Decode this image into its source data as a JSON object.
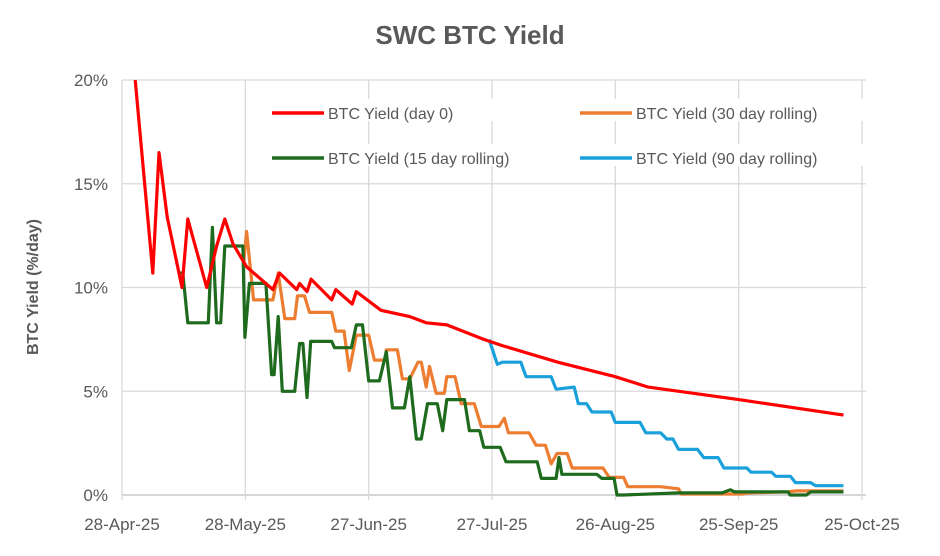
{
  "chart_data": {
    "type": "line",
    "title": "SWC BTC Yield",
    "xlabel": "",
    "ylabel": "BTC Yield (%/day)",
    "x_unit": "days since 28-Apr-25",
    "xlim": [
      0,
      180
    ],
    "ylim": [
      0,
      20
    ],
    "grid": true,
    "legend_position": "top-inside",
    "x_ticks": [
      {
        "day": 0,
        "label": "28-Apr-25"
      },
      {
        "day": 30,
        "label": "28-May-25"
      },
      {
        "day": 60,
        "label": "27-Jun-25"
      },
      {
        "day": 90,
        "label": "27-Jul-25"
      },
      {
        "day": 120,
        "label": "26-Aug-25"
      },
      {
        "day": 150,
        "label": "25-Sep-25"
      },
      {
        "day": 180,
        "label": "25-Oct-25"
      }
    ],
    "y_ticks": [
      {
        "value": 0,
        "label": "0%"
      },
      {
        "value": 5,
        "label": "5%"
      },
      {
        "value": 10,
        "label": "10%"
      },
      {
        "value": 15,
        "label": "15%"
      },
      {
        "value": 20,
        "label": "20%"
      }
    ],
    "series": [
      {
        "name": "BTC Yield (day 0)",
        "color": "#FF0000",
        "points": [
          [
            3.2,
            20
          ],
          [
            7.5,
            10.7
          ],
          [
            9,
            16.5
          ],
          [
            11,
            13.4
          ],
          [
            14.6,
            10.0
          ],
          [
            16,
            13.3
          ],
          [
            20.6,
            10.0
          ],
          [
            23,
            12.0
          ],
          [
            25,
            13.3
          ],
          [
            27,
            12.1
          ],
          [
            30.3,
            11.0
          ],
          [
            36.7,
            9.9
          ],
          [
            38.3,
            10.7
          ],
          [
            42.5,
            9.9
          ],
          [
            43.2,
            10.2
          ],
          [
            45,
            9.8
          ],
          [
            46,
            10.4
          ],
          [
            51,
            9.4
          ],
          [
            52,
            9.9
          ],
          [
            56,
            9.2
          ],
          [
            57,
            9.8
          ],
          [
            63,
            8.9
          ],
          [
            70,
            8.6
          ],
          [
            74,
            8.3
          ],
          [
            79,
            8.2
          ],
          [
            88,
            7.5
          ],
          [
            92.5,
            7.2
          ],
          [
            106,
            6.4
          ],
          [
            120,
            5.7
          ],
          [
            128,
            5.2
          ],
          [
            150,
            4.6
          ],
          [
            175.5,
            3.85
          ]
        ]
      },
      {
        "name": "BTC Yield (30 day rolling)",
        "color": "#ED7D31",
        "points": [
          [
            29.5,
            11.0
          ],
          [
            30.3,
            12.7
          ],
          [
            32,
            9.4
          ],
          [
            36.7,
            9.4
          ],
          [
            38,
            10.7
          ],
          [
            39.6,
            8.5
          ],
          [
            42,
            8.5
          ],
          [
            42.7,
            9.6
          ],
          [
            44.4,
            9.6
          ],
          [
            45.6,
            8.8
          ],
          [
            51,
            8.8
          ],
          [
            52,
            7.9
          ],
          [
            54,
            7.9
          ],
          [
            55.3,
            6.0
          ],
          [
            57,
            7.7
          ],
          [
            60,
            7.7
          ],
          [
            61.4,
            6.5
          ],
          [
            64,
            6.5
          ],
          [
            64.3,
            7.0
          ],
          [
            67,
            7.0
          ],
          [
            68.2,
            5.6
          ],
          [
            70,
            5.6
          ],
          [
            72,
            6.4
          ],
          [
            72.8,
            6.4
          ],
          [
            74,
            5.2
          ],
          [
            74.8,
            6.2
          ],
          [
            76.4,
            4.9
          ],
          [
            78.4,
            4.9
          ],
          [
            79,
            5.7
          ],
          [
            81,
            5.7
          ],
          [
            82.5,
            4.4
          ],
          [
            85.7,
            4.4
          ],
          [
            87.4,
            3.3
          ],
          [
            91.7,
            3.3
          ],
          [
            93,
            3.7
          ],
          [
            94,
            3.0
          ],
          [
            99,
            3.0
          ],
          [
            100.7,
            2.4
          ],
          [
            103,
            2.4
          ],
          [
            104.4,
            1.5
          ],
          [
            105.8,
            2.0
          ],
          [
            108.3,
            2.0
          ],
          [
            109.5,
            1.3
          ],
          [
            117,
            1.3
          ],
          [
            118.5,
            0.85
          ],
          [
            122,
            0.85
          ],
          [
            123,
            0.4
          ],
          [
            131,
            0.4
          ],
          [
            135.4,
            0.3
          ],
          [
            136,
            0.05
          ],
          [
            151,
            0.05
          ],
          [
            152,
            0.1
          ],
          [
            162,
            0.15
          ],
          [
            164,
            0.2
          ],
          [
            175.5,
            0.2
          ]
        ]
      },
      {
        "name": "BTC Yield (15 day rolling)",
        "color": "#1E6B1E",
        "points": [
          [
            13.6,
            10.7
          ],
          [
            14.8,
            10.7
          ],
          [
            16,
            8.3
          ],
          [
            21,
            8.3
          ],
          [
            22,
            12.9
          ],
          [
            23,
            8.3
          ],
          [
            24,
            8.3
          ],
          [
            25,
            12.0
          ],
          [
            29.4,
            12.0
          ],
          [
            29.9,
            7.6
          ],
          [
            31,
            10.2
          ],
          [
            35,
            10.2
          ],
          [
            36.4,
            5.8
          ],
          [
            37,
            5.8
          ],
          [
            38,
            8.6
          ],
          [
            39,
            5.0
          ],
          [
            42,
            5.0
          ],
          [
            43.2,
            7.3
          ],
          [
            44,
            7.3
          ],
          [
            45,
            4.7
          ],
          [
            45.9,
            7.4
          ],
          [
            51,
            7.4
          ],
          [
            51.7,
            7.1
          ],
          [
            55.8,
            7.1
          ],
          [
            57,
            8.2
          ],
          [
            58.5,
            8.2
          ],
          [
            60,
            5.5
          ],
          [
            62.6,
            5.5
          ],
          [
            64.3,
            6.9
          ],
          [
            65.8,
            4.2
          ],
          [
            68.7,
            4.2
          ],
          [
            70,
            5.7
          ],
          [
            71.6,
            2.7
          ],
          [
            72.8,
            2.7
          ],
          [
            74.3,
            4.4
          ],
          [
            76.7,
            4.4
          ],
          [
            78,
            3.1
          ],
          [
            79,
            4.6
          ],
          [
            83.3,
            4.6
          ],
          [
            84.5,
            3.1
          ],
          [
            87,
            3.1
          ],
          [
            88,
            2.3
          ],
          [
            92,
            2.3
          ],
          [
            93.4,
            1.6
          ],
          [
            101,
            1.6
          ],
          [
            102,
            0.8
          ],
          [
            105.6,
            0.8
          ],
          [
            106.3,
            1.8
          ],
          [
            107,
            1.0
          ],
          [
            115.5,
            1.0
          ],
          [
            116.7,
            0.8
          ],
          [
            119.7,
            0.8
          ],
          [
            120.4,
            0
          ],
          [
            122,
            0
          ],
          [
            135.4,
            0.1
          ],
          [
            146,
            0.1
          ],
          [
            148,
            0.25
          ],
          [
            149,
            0.15
          ],
          [
            162,
            0.15
          ],
          [
            162.5,
            0
          ],
          [
            166.5,
            0
          ],
          [
            167.5,
            0.15
          ],
          [
            175.5,
            0.15
          ]
        ]
      },
      {
        "name": "BTC Yield (90 day rolling)",
        "color": "#1AA0DB",
        "points": [
          [
            89.3,
            7.5
          ],
          [
            91.3,
            6.3
          ],
          [
            92.5,
            6.4
          ],
          [
            97,
            6.4
          ],
          [
            98.3,
            5.7
          ],
          [
            104.4,
            5.7
          ],
          [
            105.6,
            5.1
          ],
          [
            110,
            5.2
          ],
          [
            111,
            4.4
          ],
          [
            113,
            4.4
          ],
          [
            114.3,
            4.0
          ],
          [
            119,
            4.0
          ],
          [
            120,
            3.5
          ],
          [
            126,
            3.5
          ],
          [
            127.4,
            3.0
          ],
          [
            131,
            3.0
          ],
          [
            132.5,
            2.7
          ],
          [
            134,
            2.7
          ],
          [
            135.4,
            2.2
          ],
          [
            140,
            2.2
          ],
          [
            141.5,
            1.8
          ],
          [
            145,
            1.8
          ],
          [
            146.4,
            1.3
          ],
          [
            152,
            1.3
          ],
          [
            153,
            1.1
          ],
          [
            158,
            1.1
          ],
          [
            159,
            0.9
          ],
          [
            162.6,
            0.9
          ],
          [
            163.8,
            0.6
          ],
          [
            167.5,
            0.6
          ],
          [
            168.7,
            0.45
          ],
          [
            175.5,
            0.45
          ]
        ]
      }
    ]
  }
}
